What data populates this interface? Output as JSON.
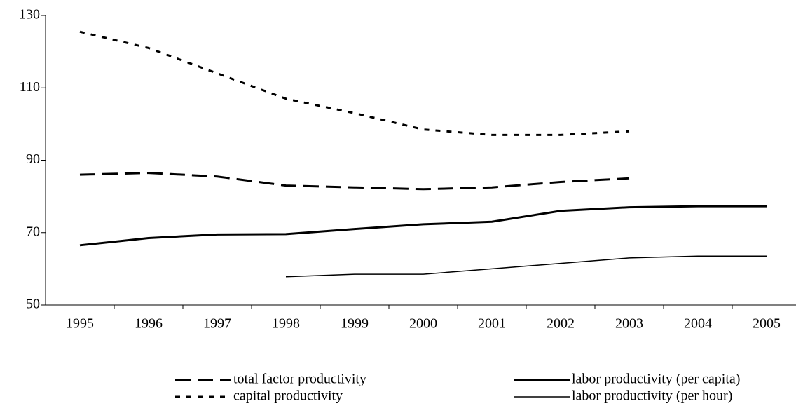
{
  "chart_data": {
    "type": "line",
    "categories": [
      "1995",
      "1996",
      "1997",
      "1998",
      "1999",
      "2000",
      "2001",
      "2002",
      "2003",
      "2004",
      "2005"
    ],
    "series": [
      {
        "name": "total factor productivity",
        "color": "#000000",
        "line_style": "long-dash",
        "line_weight": "thick",
        "values": [
          86,
          86.5,
          85.5,
          83,
          82.5,
          82,
          82.5,
          84,
          85,
          null,
          null
        ]
      },
      {
        "name": "capital productivity",
        "color": "#000000",
        "line_style": "short-dash",
        "line_weight": "thick",
        "values": [
          125.5,
          121,
          114,
          107,
          103,
          98.5,
          97,
          97,
          98,
          null,
          null
        ]
      },
      {
        "name": "labor productivity (per capita)",
        "color": "#000000",
        "line_style": "solid",
        "line_weight": "thick",
        "values": [
          66.5,
          68.5,
          69.5,
          69.6,
          71,
          72.3,
          73,
          76,
          77,
          77.3,
          77.3
        ]
      },
      {
        "name": "labor productivity (per hour)",
        "color": "#000000",
        "line_style": "solid",
        "line_weight": "thin",
        "values": [
          null,
          null,
          null,
          57.8,
          58.5,
          58.5,
          60,
          61.5,
          63,
          63.5,
          63.5
        ]
      }
    ],
    "ylim": [
      50,
      130
    ],
    "yticks": [
      50,
      70,
      90,
      110,
      130
    ],
    "grid": false
  }
}
